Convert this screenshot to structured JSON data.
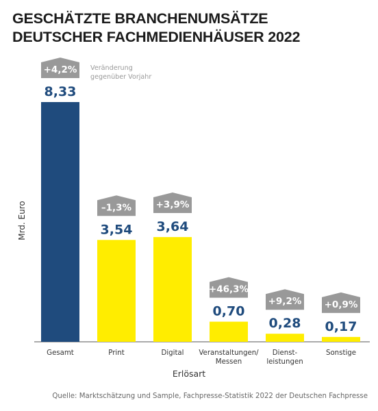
{
  "chart_data": {
    "type": "bar",
    "title_lines": [
      "GESCHÄTZTE BRANCHENUMSÄTZE",
      "DEUTSCHER FACHMEDIENHÄUSER 2022"
    ],
    "xlabel": "Erlösart",
    "ylabel": "Mrd. Euro",
    "categories": [
      {
        "lines": [
          "Gesamt"
        ]
      },
      {
        "lines": [
          "Print"
        ]
      },
      {
        "lines": [
          "Digital"
        ]
      },
      {
        "lines": [
          "Veranstaltungen/",
          "Messen"
        ]
      },
      {
        "lines": [
          "Dienst-",
          "leistungen"
        ]
      },
      {
        "lines": [
          "Sonstige"
        ]
      }
    ],
    "values": [
      8.33,
      3.54,
      3.64,
      0.7,
      0.28,
      0.17
    ],
    "value_labels": [
      "8,33",
      "3,54",
      "3,64",
      "0,70",
      "0,28",
      "0,17"
    ],
    "changes": [
      "+4,2%",
      "–1,3%",
      "+3,9%",
      "+46,3%",
      "+9,2%",
      "+0,9%"
    ],
    "change_note_lines": [
      "Veränderung",
      "gegenüber Vorjahr"
    ],
    "ylim": [
      0,
      8.33
    ],
    "grid": false,
    "colors": {
      "total_bar": "#1f4b7d",
      "segment_bar": "#ffed00",
      "value_label": "#1f4b7d",
      "change_badge": "#999999",
      "change_text": "#ffffff",
      "axis": "#555555"
    }
  },
  "source": "Quelle: Marktschätzung und Sample, Fachpresse-Statistik 2022 der Deutschen Fachpresse"
}
